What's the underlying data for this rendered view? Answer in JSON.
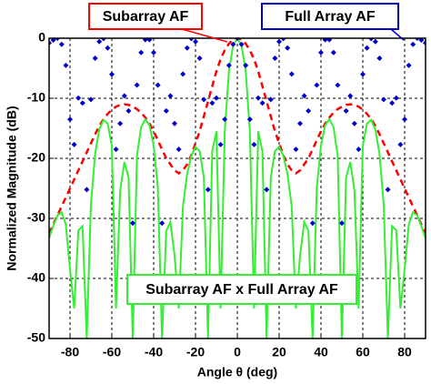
{
  "chart_data": {
    "type": "line",
    "x_label": "Angle θ (deg)",
    "y_label": "Normalized Magnitude (dB)",
    "x": [
      -90,
      -88,
      -86,
      -84,
      -82,
      -80,
      -78,
      -76,
      -74,
      -72,
      -70,
      -68,
      -66,
      -64,
      -62,
      -60,
      -58,
      -56,
      -54,
      -52,
      -50,
      -48,
      -46,
      -44,
      -42,
      -40,
      -38,
      -36,
      -34,
      -32,
      -30,
      -28,
      -26,
      -24,
      -22,
      -20,
      -18,
      -16,
      -14,
      -12,
      -10,
      -8,
      -6,
      -4,
      -2,
      0,
      2,
      4,
      6,
      8,
      10,
      12,
      14,
      16,
      18,
      20,
      22,
      24,
      26,
      28,
      30,
      32,
      34,
      36,
      38,
      40,
      42,
      44,
      46,
      48,
      50,
      52,
      54,
      56,
      58,
      60,
      62,
      64,
      66,
      68,
      70,
      72,
      74,
      76,
      78,
      80,
      82,
      84,
      86,
      88,
      90
    ],
    "series": [
      {
        "name": "Full Array AF",
        "color": "#0000cc",
        "style": "markers",
        "values": [
          -0.8,
          -0.3,
          0,
          -1.02,
          -4.52,
          -13.5,
          -17.7,
          -9.97,
          -10.8,
          -25.2,
          -10.2,
          -3.34,
          -0.56,
          -0.06,
          -1.62,
          -6.0,
          -18.5,
          -14.2,
          -9.6,
          -12.1,
          -30.8,
          -7.8,
          -2.38,
          -0.25,
          -0.25,
          -2.38,
          -7.8,
          -30.8,
          -12.1,
          -9.6,
          -14.2,
          -18.5,
          -5.97,
          -1.62,
          -0.06,
          -0.56,
          -3.34,
          -10.2,
          -25.2,
          -10.8,
          -9.97,
          -17.7,
          -13.5,
          -4.52,
          -1.02,
          0,
          -1.02,
          -4.52,
          -13.5,
          -17.7,
          -9.97,
          -10.8,
          -25.2,
          -10.2,
          -3.34,
          -0.56,
          -0.06,
          -1.62,
          -5.97,
          -18.5,
          -14.2,
          -9.6,
          -12.1,
          -30.8,
          -7.8,
          -2.38,
          -0.25,
          -0.25,
          -2.38,
          -7.8,
          -30.8,
          -12.1,
          -9.6,
          -14.2,
          -18.5,
          -6.0,
          -1.62,
          -0.06,
          -0.56,
          -3.34,
          -10.2,
          -25.2,
          -10.8,
          -9.97,
          -17.7,
          -13.5,
          -4.52,
          -1.02,
          0,
          -0.3,
          -0.8
        ]
      },
      {
        "name": "Subarray AF",
        "color": "#ff0000",
        "style": "dashed",
        "values": [
          -32.5,
          -31,
          -29.5,
          -28,
          -26.5,
          -25,
          -23.5,
          -22,
          -20.5,
          -19,
          -17.5,
          -16,
          -14.6,
          -13.5,
          -12.6,
          -11.9,
          -11.4,
          -11.1,
          -11,
          -11.1,
          -11.4,
          -11.8,
          -12.4,
          -13.2,
          -14.2,
          -15.5,
          -17,
          -18.5,
          -20,
          -21,
          -22,
          -22.5,
          -22,
          -21,
          -19.5,
          -17.5,
          -15.5,
          -13,
          -10.5,
          -8,
          -5.5,
          -3.5,
          -2.0,
          -0.9,
          -0.2,
          0,
          -0.2,
          -0.9,
          -2.0,
          -3.5,
          -5.5,
          -8,
          -10.5,
          -13,
          -15.5,
          -17.5,
          -19.5,
          -21,
          -22,
          -22.5,
          -22,
          -21,
          -20,
          -18.5,
          -17,
          -15.5,
          -14.2,
          -13.2,
          -12.4,
          -11.8,
          -11.4,
          -11.1,
          -11,
          -11.1,
          -11.4,
          -11.9,
          -12.6,
          -13.5,
          -14.6,
          -16,
          -17.5,
          -19,
          -20.5,
          -22,
          -23.5,
          -25,
          -26.5,
          -28,
          -29.5,
          -31,
          -32.5
        ]
      },
      {
        "name": "Subarray AF x Full Array AF",
        "color": "#33ee33",
        "style": "solid",
        "values": [
          -33.3,
          -31.3,
          -29.5,
          -29,
          -31,
          -38.5,
          -45,
          -32,
          -31.3,
          -50,
          -27.7,
          -19.3,
          -15.2,
          -13.6,
          -14.2,
          -17.9,
          -45,
          -25.3,
          -20.6,
          -23.2,
          -50,
          -19.6,
          -14.8,
          -13.5,
          -14.5,
          -17.9,
          -24.8,
          -50,
          -32.1,
          -30.6,
          -36.2,
          -45,
          -28,
          -22.6,
          -19.6,
          -18.1,
          -18.8,
          -23.2,
          -50,
          -18.8,
          -15.5,
          -45,
          -15.5,
          -5.4,
          -1.2,
          0,
          -1.2,
          -5.4,
          -15.5,
          -45,
          -15.5,
          -18.8,
          -50,
          -23.2,
          -18.8,
          -18.1,
          -19.6,
          -22.6,
          -28,
          -45,
          -36.2,
          -30.6,
          -32.1,
          -50,
          -24.8,
          -17.9,
          -14.5,
          -13.5,
          -14.8,
          -19.6,
          -50,
          -23.2,
          -20.6,
          -25.3,
          -45,
          -17.9,
          -14.2,
          -13.6,
          -15.2,
          -19.3,
          -27.7,
          -50,
          -31.3,
          -32,
          -45,
          -38.5,
          -31,
          -29,
          -29.5,
          -31.3,
          -33.3
        ]
      }
    ],
    "xlim": [
      -90,
      90
    ],
    "xticks": [
      -80,
      -60,
      -40,
      -20,
      0,
      20,
      40,
      60,
      80
    ],
    "ylim": [
      -50,
      0
    ],
    "yticks": [
      -50,
      -40,
      -30,
      -20,
      -10,
      0
    ],
    "grid": true
  }
}
